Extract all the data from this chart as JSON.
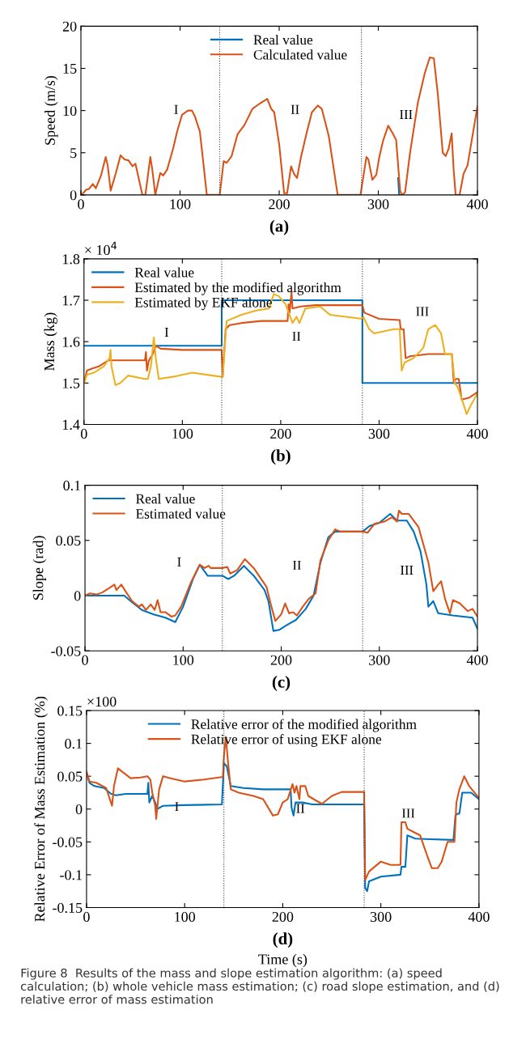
{
  "chart_data": [
    {
      "type": "line",
      "title": "(a)",
      "ylabel": "Speed (m/s)",
      "xlim": [
        0,
        400
      ],
      "xticks": [
        0,
        100,
        200,
        300,
        400
      ],
      "ylim": [
        0,
        20
      ],
      "yticks": [
        0,
        5,
        10,
        15,
        20
      ],
      "legend": "top",
      "line_style": "solid",
      "annotations": [
        "I",
        "II",
        "III"
      ],
      "ref_lines": [
        {
          "axis": "x",
          "value": 140,
          "color": "#404040",
          "line_style": "dotted"
        },
        {
          "axis": "x",
          "value": 283,
          "color": "#404040",
          "line_style": "dotted"
        }
      ],
      "series": [
        {
          "name": "Real value",
          "color": "#0072bd",
          "x": [
            320,
            321,
            322
          ],
          "values": [
            2,
            0,
            0
          ]
        },
        {
          "name": "Calculated value",
          "color": "#d95319",
          "x": [
            0,
            3,
            5,
            8,
            12,
            15,
            20,
            25,
            27,
            30,
            35,
            40,
            44,
            48,
            52,
            55,
            62,
            65,
            70,
            72,
            75,
            80,
            83,
            87,
            93,
            97,
            102,
            108,
            112,
            115,
            120,
            127,
            140,
            144,
            147,
            152,
            158,
            165,
            173,
            180,
            188,
            192,
            195,
            200,
            205,
            208,
            212,
            215,
            218,
            222,
            228,
            233,
            239,
            243,
            250,
            259,
            282,
            288,
            290,
            294,
            298,
            301,
            305,
            310,
            315,
            318,
            322,
            324,
            327,
            332,
            340,
            347,
            352,
            356,
            360,
            365,
            368,
            371,
            374,
            376,
            378,
            382,
            386,
            390,
            400
          ],
          "values": [
            0,
            0.3,
            0.6,
            0.7,
            1.3,
            0.8,
            2.2,
            4.5,
            3.5,
            0.5,
            2.5,
            4.7,
            4.2,
            4.1,
            3.4,
            3.7,
            0,
            0,
            4.5,
            3,
            0,
            2.6,
            2.3,
            3,
            5.5,
            7.5,
            9.5,
            10,
            10,
            9.3,
            7.5,
            0,
            0,
            4,
            3.8,
            4.6,
            7.2,
            8.3,
            10.2,
            10.8,
            11.4,
            10.2,
            9.8,
            6,
            0.2,
            0.2,
            3.4,
            2.5,
            2,
            4.5,
            7.5,
            9.8,
            10.6,
            10.2,
            7,
            0,
            0,
            4.5,
            4.2,
            1.8,
            2.4,
            4.5,
            6.5,
            8.2,
            7.2,
            6.5,
            0.5,
            0,
            0.3,
            5,
            11,
            14.5,
            16.3,
            16.2,
            12,
            5,
            4.6,
            5.5,
            7.3,
            3,
            0,
            0,
            2.5,
            3.5,
            10.5
          ]
        }
      ]
    },
    {
      "type": "line",
      "title": "(b)",
      "ylabel": "Mass (kg)",
      "xlim": [
        0,
        400
      ],
      "xticks": [
        0,
        100,
        200,
        300,
        400
      ],
      "ylim": [
        1.4,
        1.8
      ],
      "yticks": [
        1.4,
        1.5,
        1.6,
        1.7,
        1.8
      ],
      "legend": "top left",
      "line_style": "solid",
      "annotations": [
        "× 10$^{4}$",
        "I",
        "II",
        "III"
      ],
      "ref_lines": [
        {
          "axis": "x",
          "value": 140,
          "color": "#404040",
          "line_style": "dotted"
        },
        {
          "axis": "x",
          "value": 283,
          "color": "#404040",
          "line_style": "dotted"
        }
      ],
      "series": [
        {
          "name": "Real value",
          "color": "#0072bd",
          "x": [
            0,
            140,
            140,
            283,
            283,
            400
          ],
          "values": [
            1.59,
            1.59,
            1.7,
            1.7,
            1.5,
            1.5
          ]
        },
        {
          "name": "Estimated by the modified algorithm",
          "color": "#d95319",
          "x": [
            0,
            3,
            8,
            15,
            25,
            30,
            62,
            63,
            64,
            66,
            70,
            73,
            78,
            100,
            140,
            141,
            144,
            148,
            160,
            180,
            207,
            208,
            209,
            211,
            212,
            220,
            235,
            283,
            285,
            300,
            321,
            322,
            325,
            327,
            332,
            350,
            374,
            376,
            378,
            381,
            384,
            392,
            400
          ],
          "values": [
            1.5,
            1.53,
            1.535,
            1.54,
            1.555,
            1.555,
            1.555,
            1.575,
            1.53,
            1.555,
            1.57,
            1.59,
            1.583,
            1.58,
            1.58,
            1.515,
            1.63,
            1.64,
            1.645,
            1.65,
            1.65,
            1.69,
            1.67,
            1.72,
            1.68,
            1.685,
            1.688,
            1.688,
            1.67,
            1.655,
            1.652,
            1.63,
            1.63,
            1.56,
            1.565,
            1.57,
            1.57,
            1.5,
            1.51,
            1.51,
            1.46,
            1.465,
            1.478
          ]
        },
        {
          "name": "Estimated by EKF alone",
          "color": "#edb120",
          "x": [
            0,
            3,
            10,
            20,
            26,
            27,
            28,
            32,
            37,
            45,
            62,
            65,
            68,
            71,
            73,
            76,
            90,
            110,
            140,
            141,
            145,
            160,
            175,
            188,
            193,
            198,
            205,
            212,
            216,
            219,
            225,
            240,
            250,
            283,
            284,
            290,
            295,
            315,
            321,
            323,
            326,
            335,
            345,
            350,
            357,
            363,
            367,
            374,
            377,
            380,
            385,
            389,
            393,
            400
          ],
          "values": [
            1.5,
            1.52,
            1.525,
            1.54,
            1.56,
            1.58,
            1.54,
            1.495,
            1.5,
            1.518,
            1.51,
            1.51,
            1.54,
            1.61,
            1.56,
            1.51,
            1.515,
            1.525,
            1.515,
            1.515,
            1.65,
            1.665,
            1.675,
            1.68,
            1.715,
            1.71,
            1.69,
            1.645,
            1.66,
            1.645,
            1.68,
            1.685,
            1.665,
            1.655,
            1.66,
            1.63,
            1.62,
            1.63,
            1.63,
            1.53,
            1.55,
            1.56,
            1.585,
            1.63,
            1.64,
            1.62,
            1.57,
            1.57,
            1.5,
            1.49,
            1.455,
            1.425,
            1.445,
            1.475
          ]
        }
      ]
    },
    {
      "type": "line",
      "title": "(c)",
      "ylabel": "Slope (rad)",
      "xlim": [
        0,
        400
      ],
      "xticks": [
        0,
        100,
        200,
        300,
        400
      ],
      "ylim": [
        -0.05,
        0.1
      ],
      "yticks": [
        -0.05,
        0,
        0.05,
        0.1
      ],
      "legend": "top left",
      "line_style": "solid",
      "annotations": [
        "I",
        "II",
        "III"
      ],
      "ref_lines": [
        {
          "axis": "x",
          "value": 140,
          "color": "#404040",
          "line_style": "dotted"
        },
        {
          "axis": "x",
          "value": 283,
          "color": "#404040",
          "line_style": "dotted"
        }
      ],
      "series": [
        {
          "name": "Real value",
          "color": "#0072bd",
          "x": [
            0,
            40,
            48,
            58,
            70,
            82,
            92,
            100,
            110,
            117,
            125,
            140,
            146,
            152,
            162,
            172,
            183,
            187,
            192,
            198,
            205,
            215,
            225,
            233,
            240,
            248,
            255,
            283,
            290,
            300,
            311,
            318,
            328,
            335,
            342,
            348,
            350,
            353,
            355,
            360,
            375,
            395,
            400
          ],
          "values": [
            0,
            0,
            -0.006,
            -0.013,
            -0.017,
            -0.02,
            -0.024,
            -0.01,
            0.015,
            0.028,
            0.018,
            0.018,
            0.015,
            0.018,
            0.027,
            0.018,
            0.005,
            -0.005,
            -0.032,
            -0.031,
            -0.027,
            -0.022,
            -0.012,
            0,
            0.03,
            0.053,
            0.058,
            0.058,
            0.063,
            0.066,
            0.074,
            0.068,
            0.068,
            0.058,
            0.04,
            0.01,
            -0.01,
            -0.007,
            -0.005,
            -0.016,
            -0.018,
            -0.02,
            -0.03
          ]
        },
        {
          "name": "Estimated value",
          "color": "#d95319",
          "x": [
            0,
            5,
            12,
            18,
            25,
            30,
            32,
            37,
            42,
            48,
            55,
            58,
            62,
            67,
            71,
            74,
            77,
            82,
            88,
            92,
            98,
            108,
            117,
            122,
            126,
            128,
            140,
            145,
            148,
            155,
            163,
            172,
            185,
            190,
            194,
            200,
            204,
            208,
            212,
            216,
            222,
            228,
            235,
            240,
            248,
            255,
            260,
            283,
            288,
            295,
            305,
            313,
            318,
            320,
            323,
            330,
            340,
            350,
            355,
            360,
            363,
            367,
            372,
            375,
            382,
            390,
            395,
            400
          ],
          "values": [
            0,
            0.002,
            0.001,
            0.003,
            0.007,
            0.01,
            0.005,
            0.01,
            0.003,
            -0.005,
            -0.01,
            -0.008,
            -0.013,
            -0.008,
            -0.013,
            -0.004,
            -0.015,
            -0.015,
            -0.019,
            -0.018,
            -0.01,
            0.012,
            0.028,
            0.025,
            0.027,
            0.025,
            0.025,
            0.026,
            0.02,
            0.023,
            0.033,
            0.025,
            0.008,
            -0.01,
            -0.023,
            -0.017,
            -0.007,
            -0.016,
            -0.015,
            -0.018,
            -0.01,
            -0.003,
            0.002,
            0.032,
            0.05,
            0.06,
            0.058,
            0.058,
            0.057,
            0.065,
            0.067,
            0.071,
            0.067,
            0.077,
            0.074,
            0.074,
            0.062,
            0.03,
            0.004,
            0.01,
            0.013,
            -0.003,
            -0.016,
            -0.004,
            -0.007,
            -0.014,
            -0.012,
            -0.019
          ]
        }
      ]
    },
    {
      "type": "line",
      "title": "(d)",
      "xlabel": "Time (s)",
      "ylabel": "Relative Error of Mass Estimation (%)",
      "xlim": [
        0,
        400
      ],
      "xticks": [
        0,
        100,
        200,
        300,
        400
      ],
      "ylim": [
        -0.15,
        0.15
      ],
      "yticks": [
        -0.15,
        -0.1,
        -0.05,
        0,
        0.05,
        0.1,
        0.15
      ],
      "legend": "top",
      "line_style": "solid",
      "annotations": [
        "×100",
        "Figure 8  Results of the mass and slope estimation algorithm: (a) speed calculation; (b) whole vehicle mass estimation; (c) road slope estimation, and (d) relative error of mass estimation",
        "I",
        "II",
        "III"
      ],
      "ref_lines": [
        {
          "axis": "x",
          "value": 140,
          "color": "#404040",
          "line_style": "dotted"
        },
        {
          "axis": "x",
          "value": 283,
          "color": "#404040",
          "line_style": "dotted"
        }
      ],
      "series": [
        {
          "name": "Relative error of the modified algorithm",
          "color": "#0072bd",
          "x": [
            0,
            3,
            8,
            18,
            25,
            30,
            40,
            62,
            63,
            64,
            67,
            70,
            72,
            78,
            100,
            138,
            140,
            143,
            147,
            160,
            180,
            208,
            209,
            211,
            213,
            220,
            230,
            283,
            284,
            286,
            288,
            300,
            320,
            321,
            325,
            327,
            335,
            350,
            374,
            376,
            378,
            380,
            383,
            392,
            400
          ],
          "values": [
            0.055,
            0.04,
            0.035,
            0.032,
            0.023,
            0.021,
            0.023,
            0.023,
            0.04,
            0.01,
            0.02,
            0.01,
            0,
            0.005,
            0.006,
            0.007,
            0.07,
            0.065,
            0.035,
            0.032,
            0.03,
            0.03,
            0.002,
            -0.01,
            0.01,
            0.01,
            0.007,
            0.007,
            -0.12,
            -0.125,
            -0.11,
            -0.103,
            -0.1,
            -0.088,
            -0.088,
            -0.04,
            -0.045,
            -0.046,
            -0.047,
            -0.01,
            -0.007,
            -0.007,
            0.025,
            0.025,
            0.015
          ]
        },
        {
          "name": "Relative error of using EKF alone",
          "color": "#d95319",
          "x": [
            0,
            3,
            10,
            20,
            26,
            28,
            32,
            38,
            45,
            55,
            62,
            65,
            67,
            70,
            71,
            74,
            78,
            85,
            100,
            120,
            139,
            140,
            142,
            144,
            147,
            155,
            170,
            180,
            190,
            195,
            200,
            205,
            210,
            212,
            214,
            217,
            218,
            223,
            226,
            235,
            240,
            250,
            260,
            283,
            284,
            288,
            300,
            310,
            320,
            321,
            325,
            327,
            340,
            347,
            352,
            358,
            362,
            368,
            375,
            377,
            380,
            385,
            390,
            400
          ],
          "values": [
            0.057,
            0.042,
            0.04,
            0.032,
            0.005,
            0.035,
            0.062,
            0.055,
            0.047,
            0.048,
            0.05,
            0.045,
            0.025,
            0.005,
            -0.015,
            0.03,
            0.05,
            0.047,
            0.042,
            0.045,
            0.049,
            0.08,
            0.11,
            0.075,
            0.03,
            0.025,
            0.02,
            0.015,
            -0.01,
            -0.008,
            0.01,
            0.015,
            0.038,
            0.025,
            0.035,
            0.015,
            0.035,
            0.035,
            0.02,
            0.012,
            0.008,
            0.02,
            0.026,
            0.026,
            -0.108,
            -0.095,
            -0.08,
            -0.085,
            -0.085,
            -0.02,
            -0.02,
            -0.03,
            -0.04,
            -0.07,
            -0.09,
            -0.09,
            -0.08,
            -0.05,
            -0.05,
            0.01,
            0.03,
            0.05,
            0.035,
            0.017
          ]
        }
      ]
    }
  ]
}
